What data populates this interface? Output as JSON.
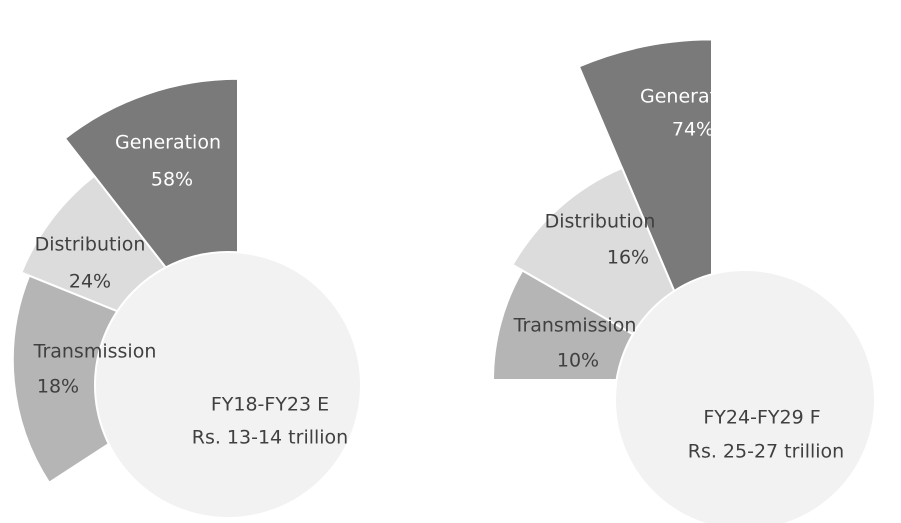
{
  "chart_data": [
    {
      "type": "polar-area",
      "categories": [
        "Generation",
        "Distribution",
        "Transmission"
      ],
      "values": [
        58,
        24,
        18
      ],
      "value_labels": [
        "58%",
        "24%",
        "18%"
      ],
      "colors": [
        "#7a7a7a",
        "#dcdcdc",
        "#b5b5b5"
      ],
      "center_label": [
        "FY18-FY23 E",
        "Rs. 13-14 trillion"
      ]
    },
    {
      "type": "polar-area",
      "categories": [
        "Generation",
        "Distribution",
        "Transmission"
      ],
      "values": [
        74,
        16,
        10
      ],
      "value_labels": [
        "74%",
        "16%",
        "10%"
      ],
      "colors": [
        "#7a7a7a",
        "#dcdcdc",
        "#b5b5b5"
      ],
      "center_label": [
        "FY24-FY29 F",
        "Rs. 25-27 trillion"
      ]
    }
  ]
}
